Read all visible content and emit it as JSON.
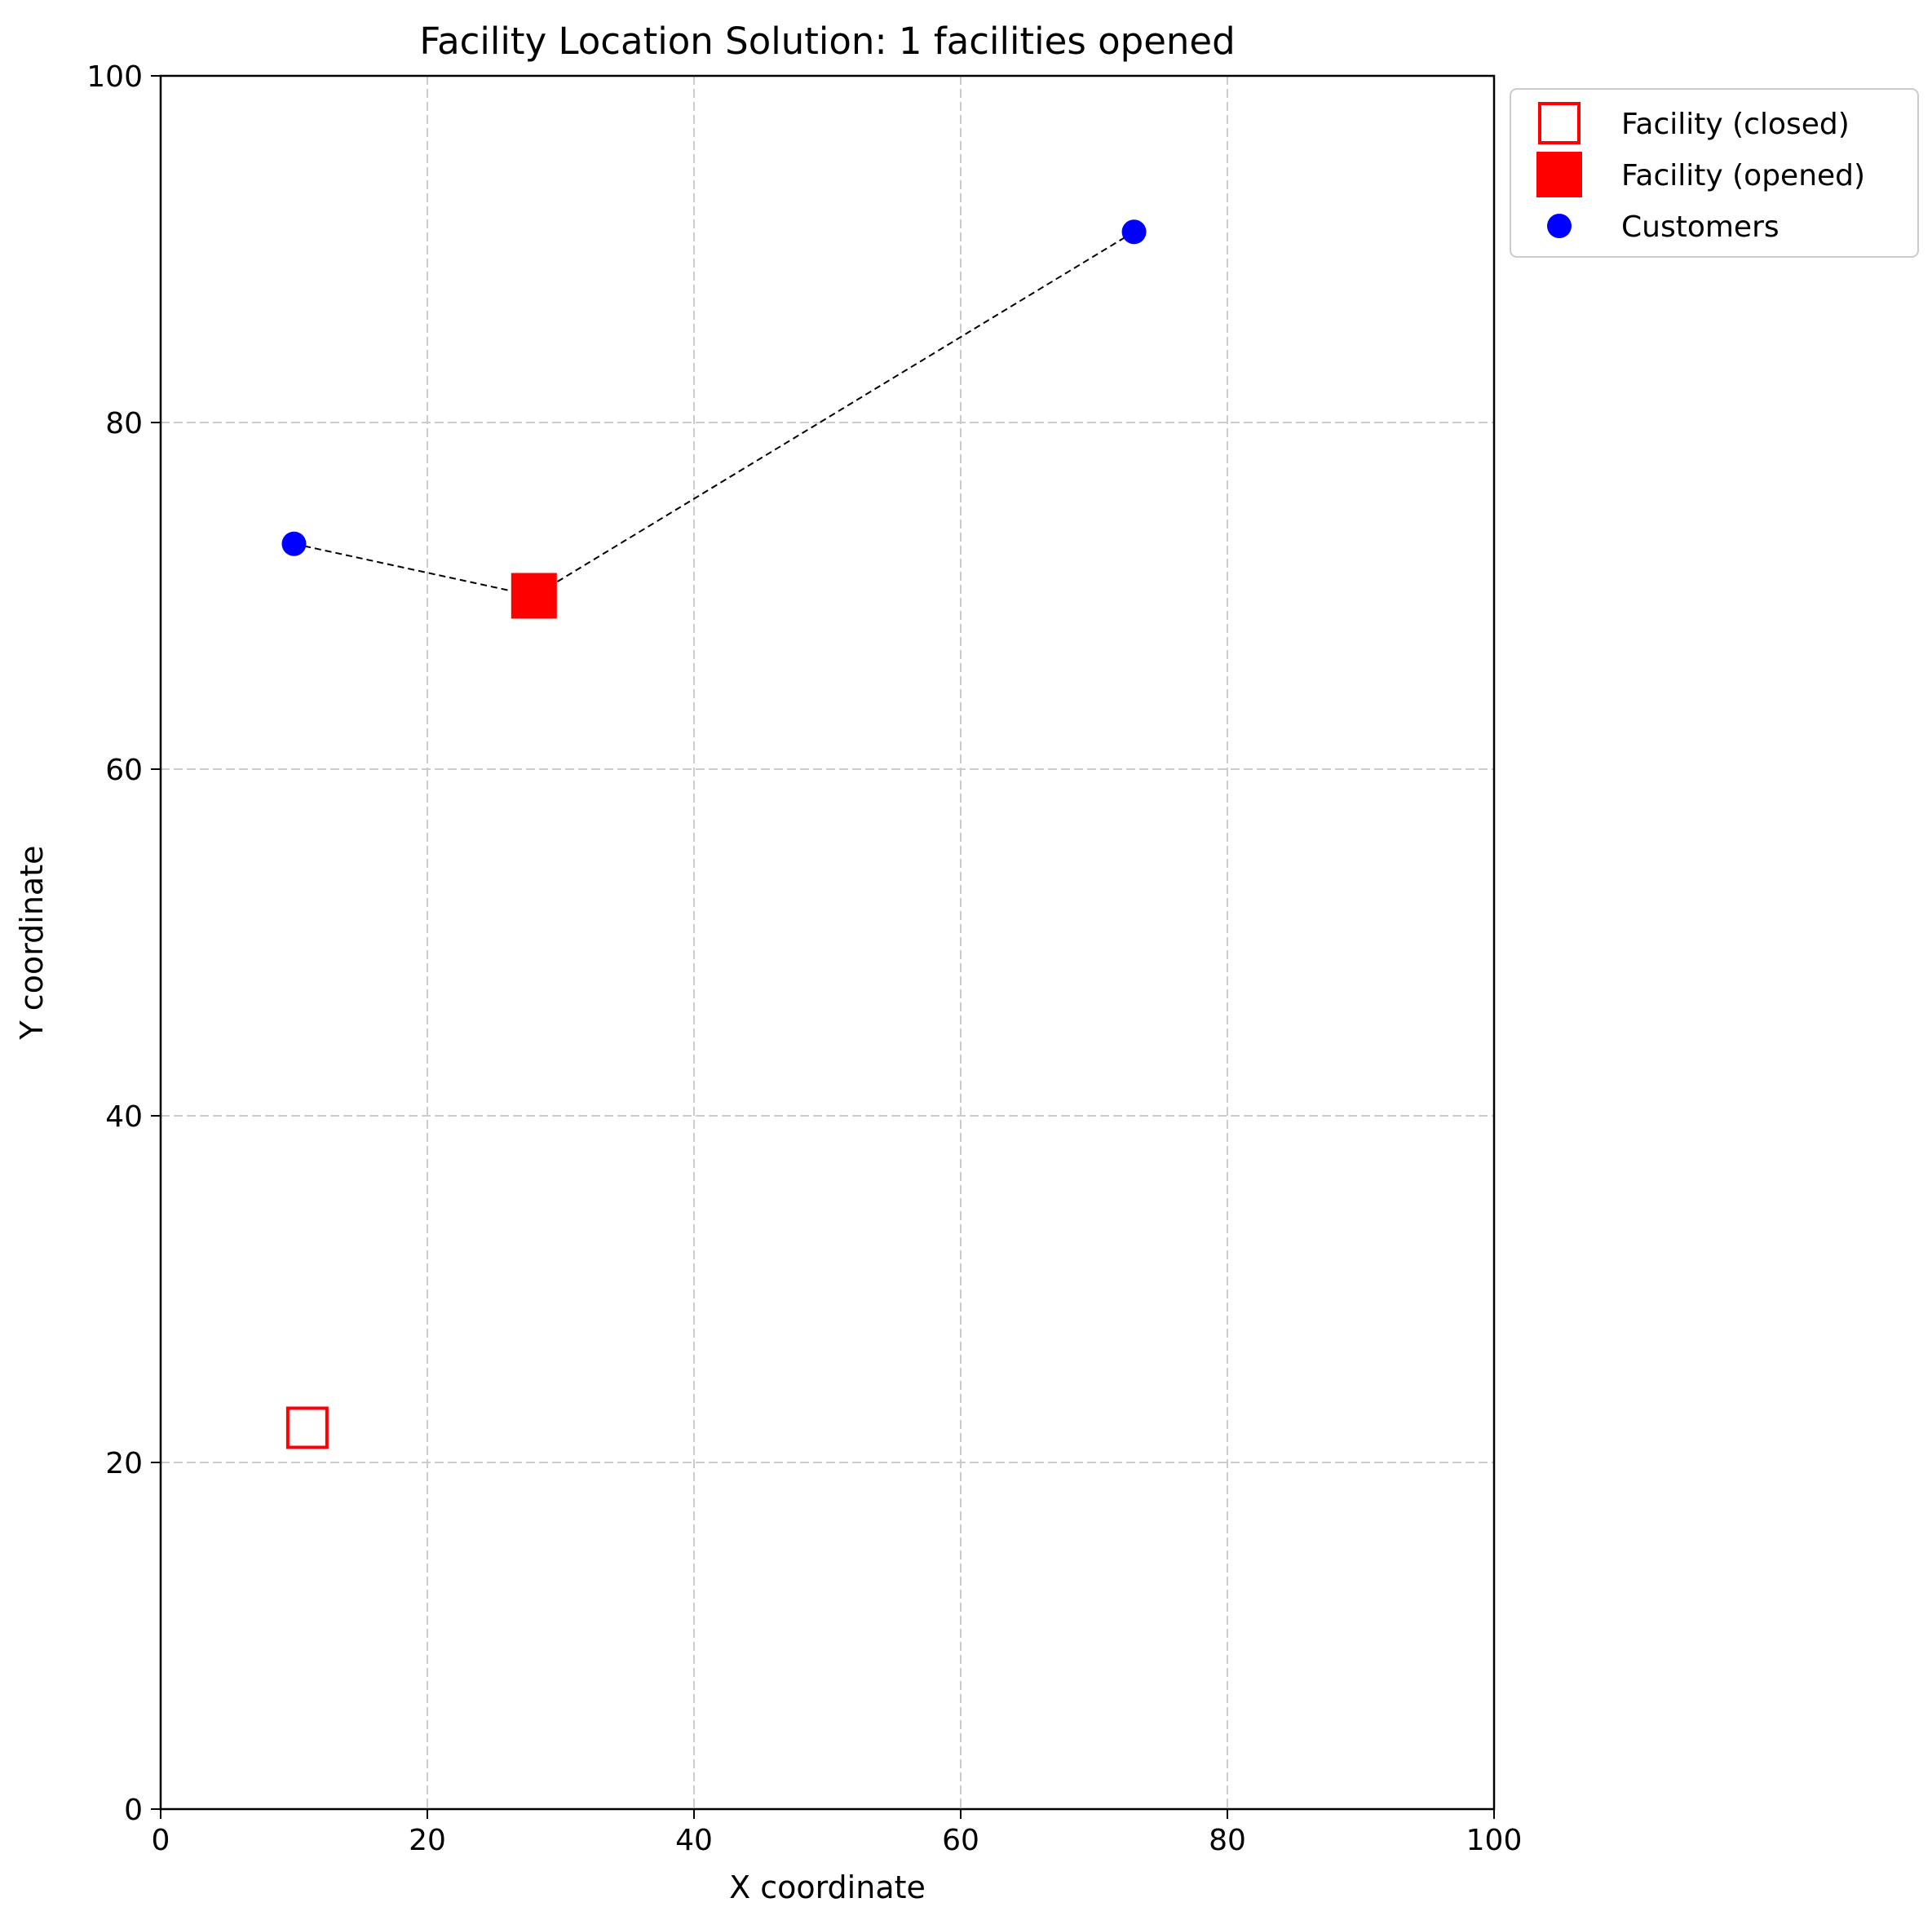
{
  "chart_data": {
    "type": "scatter",
    "title": "Facility Location Solution: 1 facilities opened",
    "xlabel": "X coordinate",
    "ylabel": "Y coordinate",
    "xlim": [
      0,
      100
    ],
    "ylim": [
      0,
      100
    ],
    "x_ticks": [
      0,
      20,
      40,
      60,
      80,
      100
    ],
    "y_ticks": [
      0,
      20,
      40,
      60,
      80,
      100
    ],
    "grid": true,
    "legend_placement": "outside upper right",
    "series": [
      {
        "name": "Facility (closed)",
        "marker": "hollow-square",
        "color": "#ff0000",
        "points": [
          [
            11,
            22
          ]
        ]
      },
      {
        "name": "Facility (opened)",
        "marker": "filled-square",
        "color": "#ff0000",
        "points": [
          [
            28,
            70
          ]
        ]
      },
      {
        "name": "Customers",
        "marker": "circle",
        "color": "#0000ff",
        "points": [
          [
            10,
            73
          ],
          [
            73,
            91
          ]
        ]
      }
    ],
    "assignments": [
      {
        "from": [
          10,
          73
        ],
        "to": [
          28,
          70
        ]
      },
      {
        "from": [
          73,
          91
        ],
        "to": [
          28,
          70
        ]
      }
    ],
    "assignment_line_color": "#000000"
  }
}
